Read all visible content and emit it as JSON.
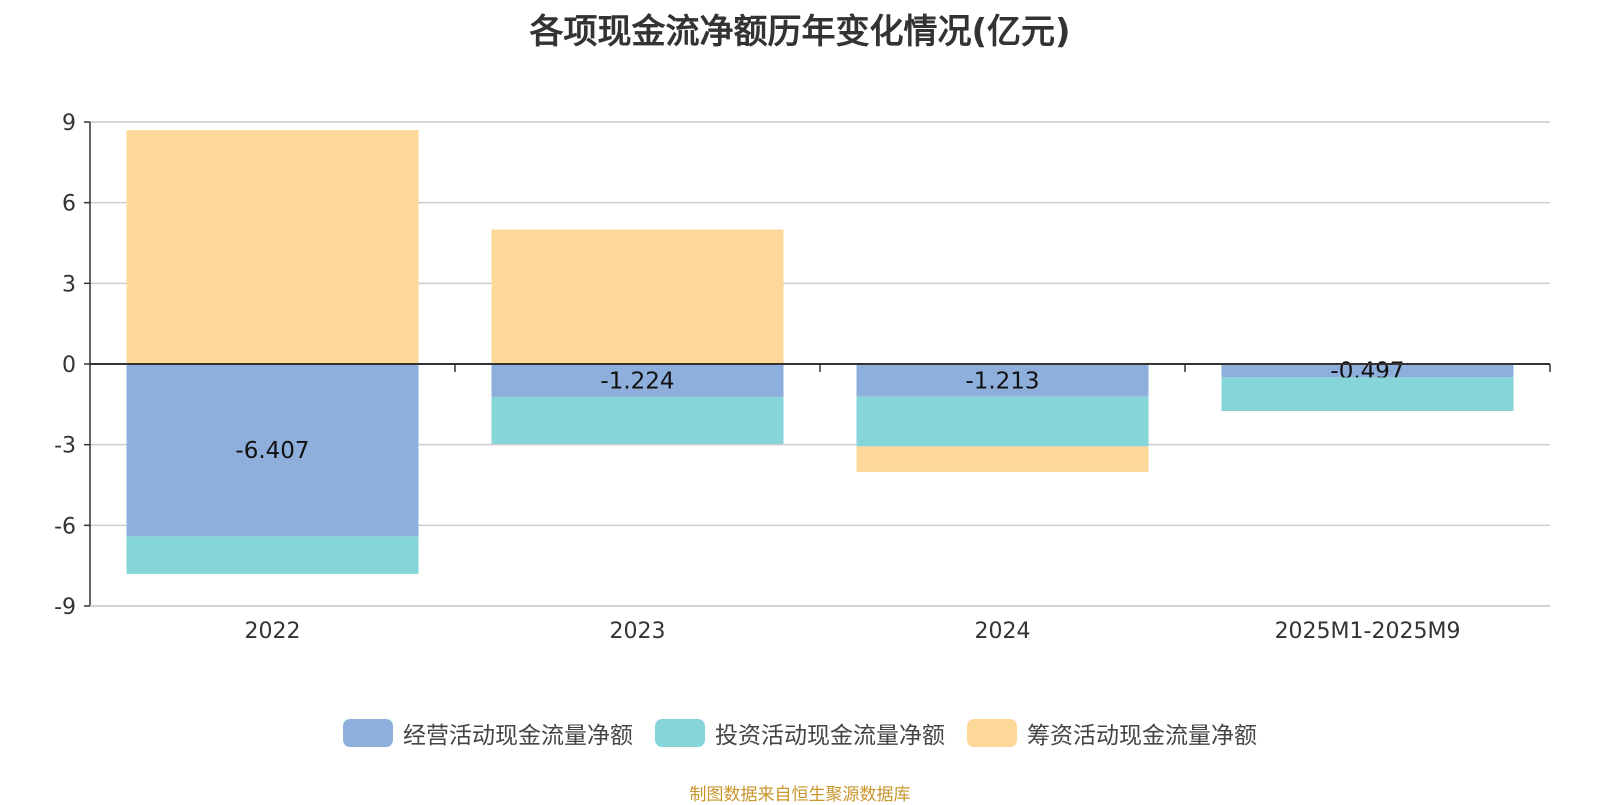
{
  "chart_data": {
    "type": "bar",
    "stacked": true,
    "title": "各项现金流净额历年变化情况(亿元)",
    "categories": [
      "2022",
      "2023",
      "2024",
      "2025M1-2025M9"
    ],
    "series": [
      {
        "name": "经营活动现金流量净额",
        "color": "#8eaedb",
        "values": [
          -6.407,
          -1.224,
          -1.213,
          -0.497
        ],
        "labels": [
          "-6.407",
          "-1.224",
          "-1.213",
          "-0.497"
        ]
      },
      {
        "name": "投资活动现金流量净额",
        "color": "#86d6d9",
        "values": [
          -1.4,
          -1.75,
          -1.85,
          -1.25
        ]
      },
      {
        "name": "筹资活动现金流量净额",
        "color": "#fdd899",
        "values": [
          8.7,
          5.0,
          -0.95,
          0
        ]
      }
    ],
    "ylim": [
      -9,
      9
    ],
    "yticks": [
      9,
      6,
      3,
      0,
      -3,
      -6,
      -9
    ],
    "grid": true,
    "legend": "bottom-center",
    "xlabel": "",
    "ylabel": ""
  },
  "source": "制图数据来自恒生聚源数据库"
}
